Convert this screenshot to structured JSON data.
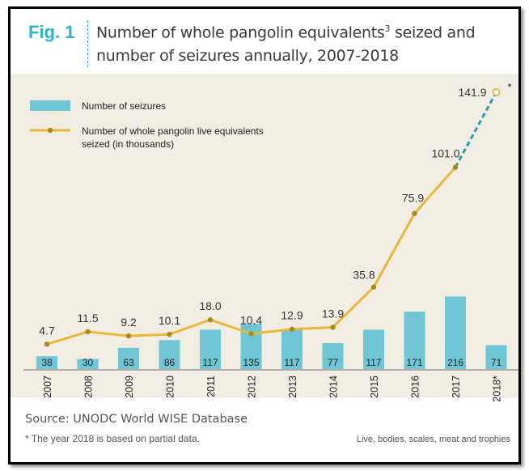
{
  "figure": {
    "label": "Fig. 1",
    "title_line1": "Number of whole pangolin equivalents",
    "title_sup": "3",
    "title_line1_end": " seized and",
    "title_line2": "number of seizures annually, 2007-2018"
  },
  "footer": {
    "source": "Source: UNODC World WISE Database",
    "footnote": "* The year 2018 is based on partial data.",
    "note": "Live, bodies, scales, meat and trophies"
  },
  "chart_data": {
    "type": "bar+line",
    "categories": [
      "2007",
      "2008",
      "2009",
      "2010",
      "2011",
      "2012",
      "2013",
      "2014",
      "2015",
      "2016",
      "2017",
      "2018*"
    ],
    "series": [
      {
        "name": "Number of seizures",
        "type": "bar",
        "color": "#6fc6d4",
        "values": [
          38,
          30,
          63,
          86,
          117,
          135,
          117,
          77,
          117,
          171,
          216,
          71
        ]
      },
      {
        "name": "Number of whole pangolin live equivalents seized (in thousands)",
        "type": "line",
        "color": "#e6b93a",
        "values": [
          4.7,
          11.5,
          9.2,
          10.1,
          18.0,
          10.4,
          12.9,
          13.9,
          35.8,
          75.9,
          101.0,
          141.9
        ],
        "labels": [
          "4.7",
          "11.5",
          "9.2",
          "10.1",
          "18.0",
          "10.4",
          "12.9",
          "13.9",
          "35.8",
          "75.9",
          "101.0",
          "141.9"
        ],
        "projected_last_segment_color": "#2a9ab0"
      }
    ],
    "asterisk": "*",
    "legend_position": "top-left",
    "grid": false
  }
}
